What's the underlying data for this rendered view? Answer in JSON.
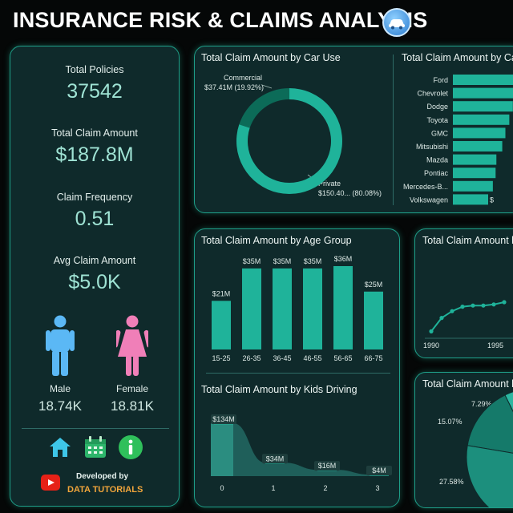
{
  "header": {
    "title": "INSURANCE RISK & CLAIMS ANALYSIS",
    "logo_icon": "car-icon"
  },
  "kpis": [
    {
      "label": "Total Policies",
      "value": "37542"
    },
    {
      "label": "Total Claim Amount",
      "value": "$187.8M"
    },
    {
      "label": "Claim Frequency",
      "value": "0.51"
    },
    {
      "label": "Avg Claim Amount",
      "value": "$5.0K"
    }
  ],
  "gender": {
    "male": {
      "label": "Male",
      "value": "18.74K",
      "icon": "male-person-icon",
      "color": "#5bb8f5"
    },
    "female": {
      "label": "Female",
      "value": "18.81K",
      "icon": "female-person-icon",
      "color": "#f07fb8"
    }
  },
  "nav": {
    "home_icon": "home-icon",
    "calendar_icon": "calendar-icon",
    "info_icon": "info-icon"
  },
  "footer": {
    "developed_by": "Developed by",
    "brand": "DATA TUTORIALS",
    "brand_icon": "youtube-icon"
  },
  "colors": {
    "accent": "#1fb39a",
    "card_bg": "#0f2a2b",
    "border": "#1e9e88",
    "dark_slice": "#0c6b58"
  },
  "panels": {
    "car_use": "Total Claim Amount by Car Use",
    "car_make": "Total Claim Amount by Car Make",
    "age_group": "Total Claim Amount by Age Group",
    "kids_driving": "Total Claim Amount by Kids Driving",
    "car_year": "Total Claim Amount by Car Year",
    "last": "Total Claim Amount by"
  },
  "chart_data": [
    {
      "id": "car_use",
      "type": "pie",
      "title": "Total Claim Amount by Car Use",
      "slices": [
        {
          "name": "Commercial",
          "label": "$37.41M (19.92%)",
          "value": 19.92
        },
        {
          "name": "Private",
          "label": "$150.40... (80.08%)",
          "value": 80.08
        }
      ]
    },
    {
      "id": "car_make",
      "type": "bar",
      "title": "Total Claim Amount by Car Make",
      "categories": [
        "Ford",
        "Chevrolet",
        "Dodge",
        "Toyota",
        "GMC",
        "Mitsubishi",
        "Mazda",
        "Pontiac",
        "Mercedes-B...",
        "Volkswagen"
      ],
      "values": [
        18,
        17.4,
        15.3,
        14.4,
        13.4,
        12.6,
        11.1,
        10.9,
        10.2,
        9.0
      ],
      "visible_labels": [
        "",
        "",
        "",
        "",
        "",
        "",
        "",
        "",
        "",
        "$"
      ]
    },
    {
      "id": "age_group",
      "type": "bar",
      "title": "Total Claim Amount by Age Group",
      "categories": [
        "15-25",
        "26-35",
        "36-45",
        "46-55",
        "56-65",
        "66-75"
      ],
      "values": [
        21,
        35,
        35,
        35,
        36,
        25
      ],
      "value_labels": [
        "$21M",
        "$35M",
        "$35M",
        "$35M",
        "$36M",
        "$25M"
      ]
    },
    {
      "id": "kids_driving",
      "type": "area",
      "title": "Total Claim Amount by Kids Driving",
      "categories": [
        "0",
        "1",
        "2",
        "3"
      ],
      "values": [
        134,
        34,
        16,
        4
      ],
      "value_labels": [
        "$134M",
        "$34M",
        "$16M",
        "$4M"
      ]
    },
    {
      "id": "car_year",
      "type": "line",
      "title": "Total Claim Amount by Car Year",
      "x_ticks": [
        "1990",
        "1995"
      ],
      "x": [
        1990,
        1991,
        1992,
        1993,
        1994,
        1995,
        1996,
        1997
      ],
      "values": [
        0.4,
        1.6,
        2.2,
        2.6,
        2.7,
        2.7,
        2.8,
        3.0
      ]
    },
    {
      "id": "last",
      "type": "pie",
      "title": "Total Claim Amount by",
      "slices": [
        {
          "label": "7.29%",
          "value": 7.29
        },
        {
          "label": "15.07%",
          "value": 15.07
        },
        {
          "label": "27.58%",
          "value": 27.58
        }
      ]
    }
  ]
}
